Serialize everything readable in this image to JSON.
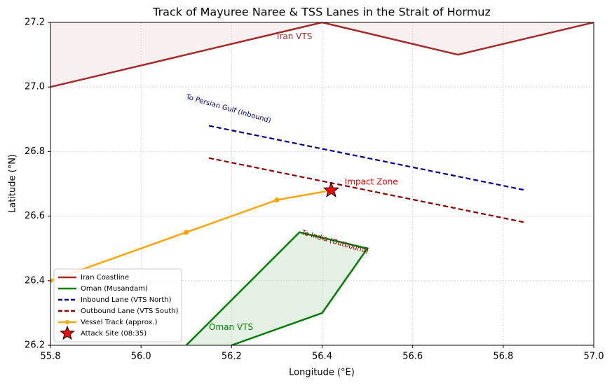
{
  "chart_data": {
    "type": "line",
    "title": "Track of Mayuree Naree & TSS Lanes in the Strait of Hormuz",
    "x_label": "Longitude (°E)",
    "y_label": "Latitude (°N)",
    "xlim": [
      55.8,
      57.0
    ],
    "ylim": [
      26.2,
      27.2
    ],
    "xticks": [
      55.8,
      {
        "value": 56.0,
        "label": "56.0"
      },
      56.2,
      56.4,
      56.6,
      56.8,
      {
        "value": 57.0,
        "label": "57.0"
      }
    ],
    "yticks": [
      26.2,
      26.4,
      26.6,
      26.8,
      {
        "value": 27.0,
        "label": "27.0"
      },
      27.2
    ],
    "grid": true,
    "legend": "lower left",
    "series": [
      {
        "name": "Iran Coastline",
        "color": "#a52a2a",
        "style": "solid",
        "fill": "above",
        "fill_color": "#f8efef",
        "x": [
          55.8,
          56.4,
          56.7,
          57.0
        ],
        "values": [
          27.0,
          27.2,
          27.1,
          27.2
        ]
      },
      {
        "name": "Oman (Musandam)",
        "color": "#008000",
        "style": "solid",
        "fill": "inside",
        "fill_color": "#e3f0e3",
        "x": [
          56.1,
          56.35,
          56.5,
          56.4,
          56.2
        ],
        "values": [
          26.2,
          26.55,
          26.5,
          26.3,
          26.2
        ]
      },
      {
        "name": "Inbound Lane (VTS North)",
        "color": "#00008b",
        "style": "dashed",
        "x": [
          56.15,
          56.85
        ],
        "values": [
          26.88,
          26.68
        ]
      },
      {
        "name": "Outbound Lane (VTS South)",
        "color": "#8b0000",
        "style": "dashed",
        "x": [
          56.15,
          56.85
        ],
        "values": [
          26.78,
          26.58
        ]
      },
      {
        "name": "Vessel Track (approx.)",
        "color": "#ffa500",
        "style": "solid",
        "marker": "circle",
        "x": [
          55.8,
          56.1,
          56.3,
          56.42
        ],
        "values": [
          26.4,
          26.55,
          26.65,
          26.68
        ]
      },
      {
        "name": "Attack Site (08:35)",
        "color": "#ff0000",
        "style": "none",
        "marker": "star",
        "x": [
          56.42
        ],
        "values": [
          26.68
        ]
      }
    ],
    "annotations": [
      {
        "text": "Iran VTS",
        "x": 56.3,
        "y": 27.155,
        "color": "#a52a2a",
        "rotation": 0
      },
      {
        "text": "Oman VTS",
        "x": 56.15,
        "y": 26.255,
        "color": "#008000",
        "rotation": 0
      },
      {
        "text": "To Persian Gulf (Inbound)",
        "x": 56.1,
        "y": 26.97,
        "color": "#00008b",
        "rotation": 16
      },
      {
        "text": "To India (Outbound)",
        "x": 56.355,
        "y": 26.55,
        "color": "#8b0000",
        "rotation": 16
      },
      {
        "text": "Impact Zone",
        "x": 56.45,
        "y": 26.705,
        "color": "#ff0000",
        "rotation": 0
      }
    ]
  }
}
